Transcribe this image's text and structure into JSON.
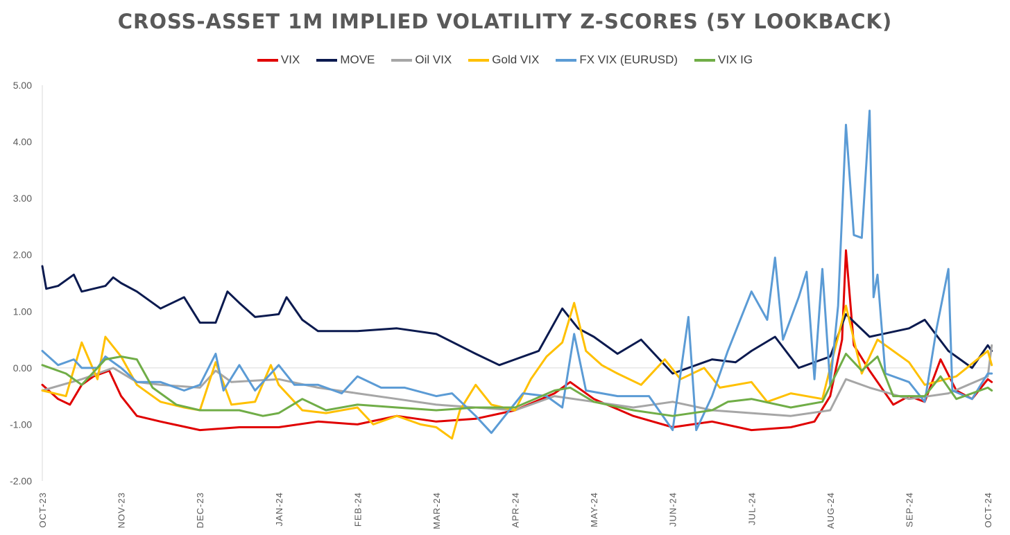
{
  "chart_data": {
    "type": "line",
    "title": "CROSS-ASSET 1M IMPLIED VOLATILITY Z-SCORES (5Y LOOKBACK)",
    "xlabel": "",
    "ylabel": "",
    "ylim": [
      -2,
      5
    ],
    "y_ticks": [
      "5.00",
      "4.00",
      "3.00",
      "2.00",
      "1.00",
      "0.00",
      "-1.00",
      "-2.00"
    ],
    "x_tick_labels": [
      "OCT-23",
      "NOV-23",
      "DEC-23",
      "JAN-24",
      "FEB-24",
      "MAR-24",
      "APR-24",
      "MAY-24",
      "JUN-24",
      "JUL-24",
      "AUG-24",
      "SEP-24",
      "OCT-24"
    ],
    "legend_position": "top",
    "grid": false,
    "x_unit": "months since OCT-23",
    "series": [
      {
        "name": "VIX",
        "color": "#e00000",
        "points": [
          [
            0,
            -0.3
          ],
          [
            0.2,
            -0.55
          ],
          [
            0.35,
            -0.65
          ],
          [
            0.5,
            -0.3
          ],
          [
            0.65,
            -0.15
          ],
          [
            0.85,
            -0.05
          ],
          [
            1,
            -0.5
          ],
          [
            1.2,
            -0.85
          ],
          [
            1.5,
            -0.95
          ],
          [
            2,
            -1.1
          ],
          [
            2.5,
            -1.05
          ],
          [
            3,
            -1.05
          ],
          [
            3.5,
            -0.95
          ],
          [
            4,
            -1.0
          ],
          [
            4.5,
            -0.85
          ],
          [
            5,
            -0.95
          ],
          [
            5.5,
            -0.9
          ],
          [
            6,
            -0.75
          ],
          [
            6.5,
            -0.45
          ],
          [
            6.7,
            -0.25
          ],
          [
            7,
            -0.55
          ],
          [
            7.5,
            -0.85
          ],
          [
            8,
            -1.05
          ],
          [
            8.5,
            -0.95
          ],
          [
            9,
            -1.1
          ],
          [
            9.5,
            -1.05
          ],
          [
            9.8,
            -0.95
          ],
          [
            10,
            -0.5
          ],
          [
            10.15,
            0.5
          ],
          [
            10.2,
            2.08
          ],
          [
            10.3,
            0.4
          ],
          [
            10.5,
            -0.05
          ],
          [
            10.8,
            -0.65
          ],
          [
            11,
            -0.5
          ],
          [
            11.2,
            -0.6
          ],
          [
            11.4,
            0.15
          ],
          [
            11.6,
            -0.4
          ],
          [
            11.8,
            -0.55
          ],
          [
            12,
            -0.2
          ],
          [
            12.05,
            -0.25
          ]
        ]
      },
      {
        "name": "MOVE",
        "color": "#0b1a4f",
        "points": [
          [
            0,
            1.8
          ],
          [
            0.05,
            1.4
          ],
          [
            0.2,
            1.45
          ],
          [
            0.4,
            1.65
          ],
          [
            0.5,
            1.35
          ],
          [
            0.8,
            1.45
          ],
          [
            0.9,
            1.6
          ],
          [
            1.0,
            1.5
          ],
          [
            1.2,
            1.35
          ],
          [
            1.5,
            1.05
          ],
          [
            1.8,
            1.25
          ],
          [
            2,
            0.8
          ],
          [
            2.2,
            0.8
          ],
          [
            2.35,
            1.35
          ],
          [
            2.5,
            1.15
          ],
          [
            2.7,
            0.9
          ],
          [
            3,
            0.95
          ],
          [
            3.1,
            1.25
          ],
          [
            3.3,
            0.85
          ],
          [
            3.5,
            0.65
          ],
          [
            4,
            0.65
          ],
          [
            4.5,
            0.7
          ],
          [
            5,
            0.6
          ],
          [
            5.5,
            0.25
          ],
          [
            5.8,
            0.05
          ],
          [
            6,
            0.15
          ],
          [
            6.3,
            0.3
          ],
          [
            6.6,
            1.05
          ],
          [
            6.8,
            0.7
          ],
          [
            7,
            0.55
          ],
          [
            7.3,
            0.25
          ],
          [
            7.6,
            0.5
          ],
          [
            8,
            -0.1
          ],
          [
            8.5,
            0.15
          ],
          [
            8.8,
            0.1
          ],
          [
            9,
            0.3
          ],
          [
            9.3,
            0.55
          ],
          [
            9.6,
            0.0
          ],
          [
            10,
            0.2
          ],
          [
            10.2,
            0.95
          ],
          [
            10.5,
            0.55
          ],
          [
            11,
            0.7
          ],
          [
            11.2,
            0.85
          ],
          [
            11.5,
            0.3
          ],
          [
            11.8,
            0.0
          ],
          [
            12,
            0.4
          ],
          [
            12.05,
            0.3
          ]
        ]
      },
      {
        "name": "Oil VIX",
        "color": "#a6a6a6",
        "points": [
          [
            0,
            -0.4
          ],
          [
            0.5,
            -0.2
          ],
          [
            0.9,
            0.0
          ],
          [
            1.2,
            -0.25
          ],
          [
            1.5,
            -0.3
          ],
          [
            2,
            -0.35
          ],
          [
            2.2,
            -0.05
          ],
          [
            2.4,
            -0.25
          ],
          [
            3,
            -0.2
          ],
          [
            3.5,
            -0.35
          ],
          [
            4,
            -0.45
          ],
          [
            4.5,
            -0.55
          ],
          [
            5,
            -0.65
          ],
          [
            5.5,
            -0.7
          ],
          [
            6,
            -0.75
          ],
          [
            6.5,
            -0.5
          ],
          [
            7,
            -0.6
          ],
          [
            7.5,
            -0.7
          ],
          [
            8,
            -0.6
          ],
          [
            8.5,
            -0.75
          ],
          [
            9,
            -0.8
          ],
          [
            9.5,
            -0.85
          ],
          [
            10,
            -0.75
          ],
          [
            10.2,
            -0.2
          ],
          [
            10.5,
            -0.35
          ],
          [
            11,
            -0.55
          ],
          [
            11.5,
            -0.45
          ],
          [
            12,
            -0.15
          ],
          [
            12.05,
            0.4
          ]
        ]
      },
      {
        "name": "Gold VIX",
        "color": "#ffc000",
        "points": [
          [
            0,
            -0.4
          ],
          [
            0.3,
            -0.5
          ],
          [
            0.5,
            0.45
          ],
          [
            0.7,
            -0.2
          ],
          [
            0.8,
            0.55
          ],
          [
            1,
            0.2
          ],
          [
            1.2,
            -0.3
          ],
          [
            1.5,
            -0.6
          ],
          [
            1.8,
            -0.7
          ],
          [
            2,
            -0.75
          ],
          [
            2.2,
            0.1
          ],
          [
            2.4,
            -0.65
          ],
          [
            2.7,
            -0.6
          ],
          [
            2.9,
            0.05
          ],
          [
            3,
            -0.3
          ],
          [
            3.3,
            -0.75
          ],
          [
            3.6,
            -0.8
          ],
          [
            4,
            -0.7
          ],
          [
            4.2,
            -1.0
          ],
          [
            4.5,
            -0.85
          ],
          [
            4.8,
            -1.0
          ],
          [
            5,
            -1.05
          ],
          [
            5.2,
            -1.25
          ],
          [
            5.3,
            -0.75
          ],
          [
            5.5,
            -0.3
          ],
          [
            5.7,
            -0.65
          ],
          [
            6,
            -0.75
          ],
          [
            6.2,
            -0.2
          ],
          [
            6.4,
            0.2
          ],
          [
            6.6,
            0.45
          ],
          [
            6.75,
            1.15
          ],
          [
            6.9,
            0.3
          ],
          [
            7.1,
            0.05
          ],
          [
            7.3,
            -0.1
          ],
          [
            7.6,
            -0.3
          ],
          [
            7.9,
            0.15
          ],
          [
            8.1,
            -0.2
          ],
          [
            8.4,
            0.0
          ],
          [
            8.6,
            -0.35
          ],
          [
            9,
            -0.25
          ],
          [
            9.2,
            -0.6
          ],
          [
            9.5,
            -0.45
          ],
          [
            9.9,
            -0.55
          ],
          [
            10.2,
            1.1
          ],
          [
            10.4,
            -0.1
          ],
          [
            10.6,
            0.5
          ],
          [
            11,
            0.1
          ],
          [
            11.2,
            -0.3
          ],
          [
            11.6,
            -0.15
          ],
          [
            12,
            0.3
          ],
          [
            12.05,
            0.05
          ]
        ]
      },
      {
        "name": "FX VIX (EURUSD)",
        "color": "#5b9bd5",
        "points": [
          [
            0,
            0.3
          ],
          [
            0.2,
            0.05
          ],
          [
            0.4,
            0.15
          ],
          [
            0.5,
            0.0
          ],
          [
            0.7,
            0.0
          ],
          [
            0.8,
            0.2
          ],
          [
            1,
            0.0
          ],
          [
            1.2,
            -0.25
          ],
          [
            1.5,
            -0.25
          ],
          [
            1.8,
            -0.4
          ],
          [
            2,
            -0.3
          ],
          [
            2.2,
            0.25
          ],
          [
            2.3,
            -0.4
          ],
          [
            2.5,
            0.05
          ],
          [
            2.7,
            -0.4
          ],
          [
            3,
            0.05
          ],
          [
            3.2,
            -0.3
          ],
          [
            3.5,
            -0.3
          ],
          [
            3.8,
            -0.45
          ],
          [
            4,
            -0.15
          ],
          [
            4.3,
            -0.35
          ],
          [
            4.6,
            -0.35
          ],
          [
            5,
            -0.5
          ],
          [
            5.2,
            -0.45
          ],
          [
            5.5,
            -0.85
          ],
          [
            5.7,
            -1.15
          ],
          [
            5.9,
            -0.8
          ],
          [
            6.1,
            -0.45
          ],
          [
            6.4,
            -0.5
          ],
          [
            6.6,
            -0.7
          ],
          [
            6.75,
            0.6
          ],
          [
            6.9,
            -0.4
          ],
          [
            7.3,
            -0.5
          ],
          [
            7.7,
            -0.5
          ],
          [
            8,
            -1.1
          ],
          [
            8.2,
            0.9
          ],
          [
            8.3,
            -1.1
          ],
          [
            8.5,
            -0.5
          ],
          [
            8.7,
            0.3
          ],
          [
            9,
            1.35
          ],
          [
            9.2,
            0.85
          ],
          [
            9.3,
            1.95
          ],
          [
            9.4,
            0.5
          ],
          [
            9.6,
            1.25
          ],
          [
            9.7,
            1.7
          ],
          [
            9.8,
            -0.2
          ],
          [
            9.9,
            1.75
          ],
          [
            10,
            -0.3
          ],
          [
            10.1,
            1.1
          ],
          [
            10.2,
            4.3
          ],
          [
            10.3,
            2.35
          ],
          [
            10.4,
            2.3
          ],
          [
            10.5,
            4.55
          ],
          [
            10.55,
            1.25
          ],
          [
            10.6,
            1.65
          ],
          [
            10.7,
            -0.1
          ],
          [
            11,
            -0.25
          ],
          [
            11.2,
            -0.6
          ],
          [
            11.35,
            0.7
          ],
          [
            11.5,
            1.75
          ],
          [
            11.55,
            -0.4
          ],
          [
            11.8,
            -0.55
          ],
          [
            12,
            -0.1
          ],
          [
            12.05,
            -0.1
          ]
        ]
      },
      {
        "name": "VIX IG",
        "color": "#70ad47",
        "points": [
          [
            0,
            0.05
          ],
          [
            0.3,
            -0.1
          ],
          [
            0.5,
            -0.3
          ],
          [
            0.8,
            0.15
          ],
          [
            1,
            0.2
          ],
          [
            1.2,
            0.15
          ],
          [
            1.4,
            -0.35
          ],
          [
            1.7,
            -0.65
          ],
          [
            2,
            -0.75
          ],
          [
            2.5,
            -0.75
          ],
          [
            2.8,
            -0.85
          ],
          [
            3,
            -0.8
          ],
          [
            3.3,
            -0.55
          ],
          [
            3.6,
            -0.75
          ],
          [
            4,
            -0.65
          ],
          [
            4.5,
            -0.7
          ],
          [
            5,
            -0.75
          ],
          [
            5.5,
            -0.7
          ],
          [
            6,
            -0.7
          ],
          [
            6.5,
            -0.4
          ],
          [
            6.7,
            -0.35
          ],
          [
            7,
            -0.6
          ],
          [
            7.5,
            -0.75
          ],
          [
            8,
            -0.85
          ],
          [
            8.5,
            -0.75
          ],
          [
            8.7,
            -0.6
          ],
          [
            9,
            -0.55
          ],
          [
            9.5,
            -0.7
          ],
          [
            9.9,
            -0.6
          ],
          [
            10.2,
            0.25
          ],
          [
            10.4,
            -0.05
          ],
          [
            10.6,
            0.2
          ],
          [
            10.8,
            -0.5
          ],
          [
            11.2,
            -0.5
          ],
          [
            11.4,
            -0.15
          ],
          [
            11.6,
            -0.55
          ],
          [
            12,
            -0.35
          ],
          [
            12.05,
            -0.4
          ]
        ]
      }
    ]
  }
}
